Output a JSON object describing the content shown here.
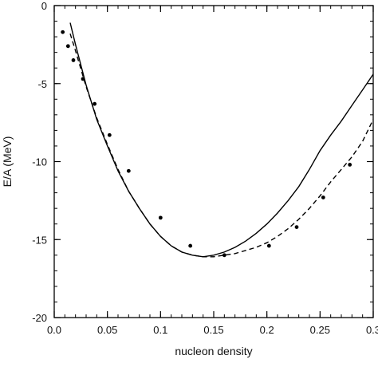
{
  "chart_data": {
    "type": "line",
    "title": "",
    "xlabel": "nucleon density",
    "ylabel": "E/A (MeV)",
    "xlim": [
      0.0,
      0.3
    ],
    "ylim": [
      -20,
      0
    ],
    "grid": false,
    "xticks": [
      0.0,
      0.05,
      0.1,
      0.15,
      0.2,
      0.25,
      0.3
    ],
    "xtick_labels": [
      "0.0",
      "0.05",
      "0.1",
      "0.15",
      "0.2",
      "0.25",
      "0.3"
    ],
    "yticks": [
      0,
      -5,
      -10,
      -15,
      -20
    ],
    "ytick_labels": [
      "0",
      "-5",
      "-10",
      "-15",
      "-20"
    ],
    "series": [
      {
        "style": "solid",
        "color": "#000000",
        "x": [
          0.015,
          0.02,
          0.03,
          0.04,
          0.05,
          0.06,
          0.07,
          0.08,
          0.09,
          0.1,
          0.11,
          0.12,
          0.13,
          0.14,
          0.15,
          0.16,
          0.17,
          0.18,
          0.19,
          0.2,
          0.21,
          0.22,
          0.23,
          0.24,
          0.25,
          0.26,
          0.27,
          0.28,
          0.29,
          0.3
        ],
        "y": [
          -1.1,
          -2.5,
          -5.1,
          -7.3,
          -9.0,
          -10.6,
          -11.9,
          -13.0,
          -14.0,
          -14.8,
          -15.4,
          -15.8,
          -16.0,
          -16.1,
          -16.0,
          -15.8,
          -15.5,
          -15.1,
          -14.6,
          -14.0,
          -13.3,
          -12.5,
          -11.6,
          -10.5,
          -9.3,
          -8.3,
          -7.4,
          -6.4,
          -5.4,
          -4.4
        ]
      },
      {
        "style": "dashed",
        "color": "#000000",
        "x": [
          0.015,
          0.02,
          0.03,
          0.04,
          0.05,
          0.06,
          0.07,
          0.08,
          0.09,
          0.1,
          0.11,
          0.12,
          0.13,
          0.14,
          0.15,
          0.16,
          0.17,
          0.18,
          0.19,
          0.2,
          0.21,
          0.22,
          0.23,
          0.24,
          0.25,
          0.26,
          0.27,
          0.28,
          0.29,
          0.3
        ],
        "y": [
          -1.8,
          -2.9,
          -5.2,
          -7.2,
          -8.9,
          -10.5,
          -11.9,
          -13.0,
          -14.0,
          -14.8,
          -15.4,
          -15.8,
          -16.0,
          -16.1,
          -16.1,
          -16.0,
          -15.9,
          -15.7,
          -15.5,
          -15.2,
          -14.8,
          -14.3,
          -13.7,
          -13.0,
          -12.2,
          -11.3,
          -10.5,
          -9.7,
          -8.7,
          -7.3
        ]
      },
      {
        "style": "points",
        "color": "#000000",
        "x": [
          0.008,
          0.013,
          0.018,
          0.027,
          0.038,
          0.052,
          0.07,
          0.1,
          0.128,
          0.16,
          0.202,
          0.228,
          0.253,
          0.278
        ],
        "y": [
          -1.7,
          -2.6,
          -3.5,
          -4.7,
          -6.3,
          -8.3,
          -10.6,
          -13.6,
          -15.4,
          -16.0,
          -15.4,
          -14.2,
          -12.3,
          -10.2
        ]
      }
    ]
  }
}
